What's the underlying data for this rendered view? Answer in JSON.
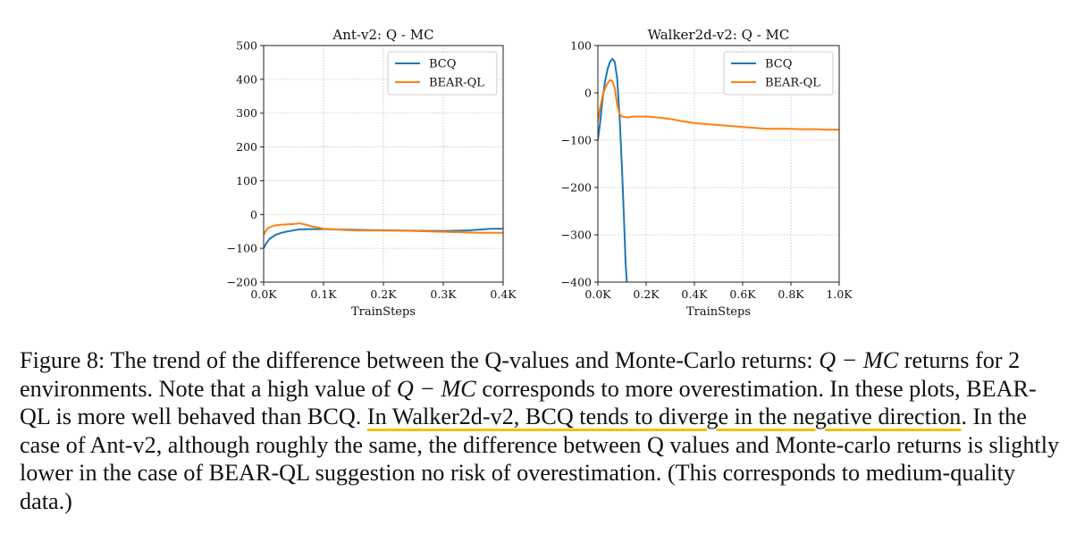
{
  "chart_data": [
    {
      "type": "line",
      "title": "Ant-v2: Q - MC",
      "xlabel": "TrainSteps",
      "ylabel": "",
      "xlim": [
        0,
        400
      ],
      "ylim": [
        -200,
        500
      ],
      "xticks": [
        0,
        100,
        200,
        300,
        400
      ],
      "xtick_labels": [
        "0.0K",
        "0.1K",
        "0.2K",
        "0.3K",
        "0.4K"
      ],
      "yticks": [
        -200,
        -100,
        0,
        100,
        200,
        300,
        400,
        500
      ],
      "ytick_labels": [
        "−200",
        "−100",
        "0",
        "100",
        "200",
        "300",
        "400",
        "500"
      ],
      "grid": true,
      "legend_position": "top-right",
      "series": [
        {
          "name": "BCQ",
          "color": "#1f77b4",
          "x": [
            0,
            5,
            10,
            20,
            30,
            40,
            60,
            80,
            100,
            140,
            180,
            220,
            260,
            300,
            340,
            380,
            400
          ],
          "y": [
            -100,
            -83,
            -72,
            -60,
            -54,
            -50,
            -44,
            -43,
            -43,
            -45,
            -46,
            -47,
            -48,
            -49,
            -47,
            -42,
            -42
          ]
        },
        {
          "name": "BEAR-QL",
          "color": "#ff7f0e",
          "x": [
            0,
            3,
            6,
            10,
            15,
            20,
            30,
            40,
            50,
            60,
            70,
            80,
            90,
            100,
            120,
            140,
            160,
            180,
            200,
            240,
            280,
            320,
            360,
            400
          ],
          "y": [
            -60,
            -50,
            -42,
            -38,
            -34,
            -32,
            -30,
            -29,
            -28,
            -26,
            -30,
            -35,
            -38,
            -42,
            -44,
            -46,
            -47,
            -47,
            -47,
            -48,
            -50,
            -52,
            -54,
            -54
          ]
        }
      ]
    },
    {
      "type": "line",
      "title": "Walker2d-v2: Q - MC",
      "xlabel": "TrainSteps",
      "ylabel": "",
      "xlim": [
        0,
        1000
      ],
      "ylim": [
        -400,
        100
      ],
      "xticks": [
        0,
        200,
        400,
        600,
        800,
        1000
      ],
      "xtick_labels": [
        "0.0K",
        "0.2K",
        "0.4K",
        "0.6K",
        "0.8K",
        "1.0K"
      ],
      "yticks": [
        -400,
        -300,
        -200,
        -100,
        0,
        100
      ],
      "ytick_labels": [
        "−400",
        "−300",
        "−200",
        "−100",
        "0",
        "100"
      ],
      "grid": true,
      "legend_position": "top-right",
      "series": [
        {
          "name": "BCQ",
          "color": "#1f77b4",
          "x": [
            0,
            10,
            20,
            30,
            40,
            50,
            60,
            70,
            80,
            90,
            100,
            110,
            115,
            120
          ],
          "y": [
            -100,
            -60,
            -10,
            25,
            50,
            65,
            72,
            65,
            30,
            -50,
            -160,
            -290,
            -360,
            -400
          ]
        },
        {
          "name": "BEAR-QL",
          "color": "#ff7f0e",
          "x": [
            0,
            10,
            20,
            30,
            40,
            50,
            60,
            70,
            80,
            90,
            100,
            120,
            150,
            200,
            250,
            300,
            350,
            400,
            450,
            500,
            550,
            600,
            650,
            700,
            750,
            800,
            850,
            900,
            950,
            1000
          ],
          "y": [
            -60,
            -30,
            -5,
            10,
            20,
            27,
            25,
            10,
            -25,
            -45,
            -50,
            -52,
            -50,
            -50,
            -52,
            -55,
            -60,
            -64,
            -66,
            -68,
            -70,
            -72,
            -74,
            -76,
            -76,
            -76,
            -77,
            -77,
            -78,
            -78
          ]
        }
      ]
    }
  ],
  "caption": {
    "lead": "Figure 8: The trend of the difference between the Q-values and Monte-Carlo returns: ",
    "math1": "Q − MC",
    "part2": " returns for 2 environments. Note that a high value of ",
    "math2": "Q − MC",
    "part3": " corresponds to more overestimation. In these plots, BEAR-QL is more well behaved than BCQ. ",
    "highlight": "In Walker2d-v2, BCQ tends to diverge in the negative direction",
    "part4": ". In the case of Ant-v2, although roughly the same, the difference between Q values and Monte-carlo returns is slightly lower in the case of BEAR-QL suggestion no risk of overestimation. (This corresponds to medium-quality data.)"
  }
}
